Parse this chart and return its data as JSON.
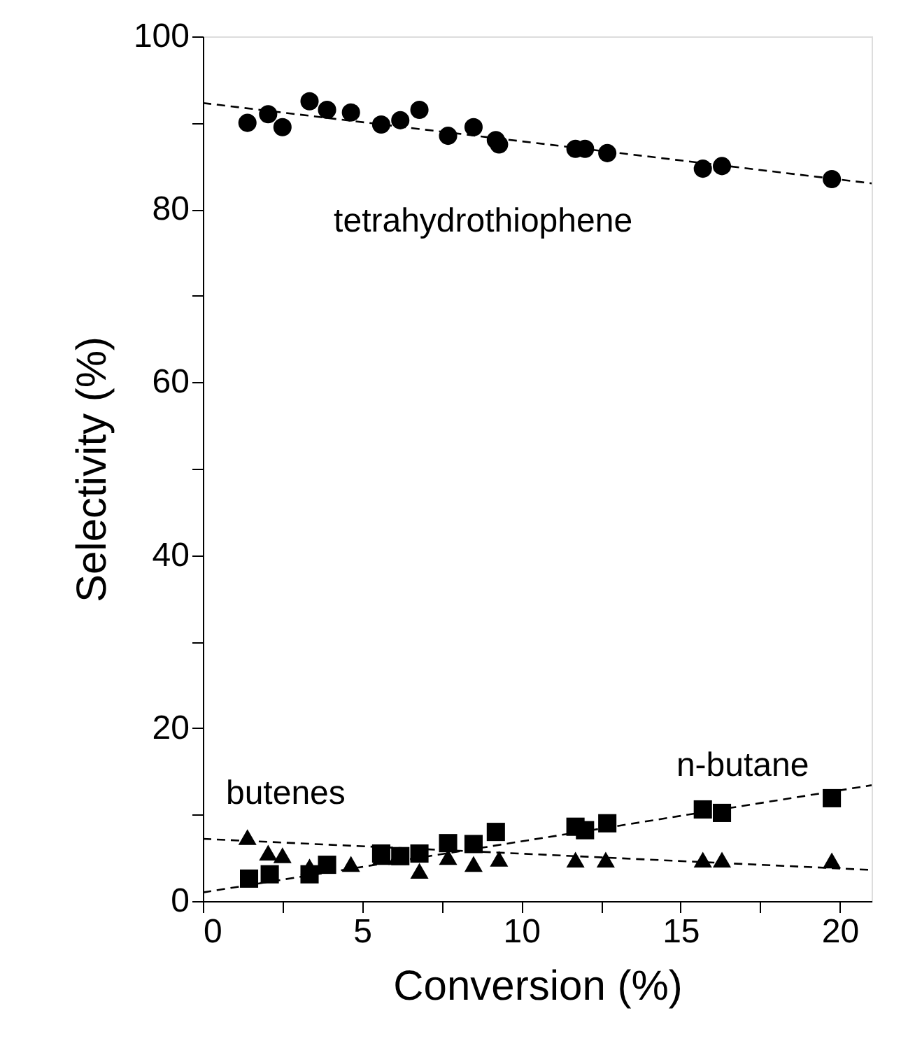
{
  "chart_data": {
    "type": "scatter",
    "xlabel": "Conversion (%)",
    "ylabel": "Selectivity (%)",
    "xlim": [
      0,
      21
    ],
    "ylim": [
      0,
      100
    ],
    "xticks": [
      0,
      {
        "value": 2.5,
        "label": null
      },
      5,
      {
        "value": 7.5,
        "label": null
      },
      10,
      {
        "value": 12.5,
        "label": null
      },
      15,
      {
        "value": 17.5,
        "label": null
      },
      20
    ],
    "yticks": [
      0,
      {
        "value": 10,
        "label": null
      },
      20,
      {
        "value": 30,
        "label": null
      },
      40,
      {
        "value": 50,
        "label": null
      },
      60,
      {
        "value": 70,
        "label": null
      },
      80,
      {
        "value": 90,
        "label": null
      },
      100
    ],
    "grid": false,
    "series": [
      {
        "name": "tetrahydrothiophene",
        "marker": "circle",
        "color": "#000000",
        "x": [
          1.4,
          2.05,
          2.5,
          3.35,
          3.9,
          4.65,
          5.6,
          6.2,
          6.8,
          7.7,
          8.5,
          9.2,
          9.3,
          11.7,
          12.0,
          12.7,
          15.7,
          16.3,
          19.75
        ],
        "values": [
          90,
          91,
          89.5,
          92.5,
          91.5,
          91.2,
          89.8,
          90.3,
          91.5,
          88.5,
          89.5,
          88,
          87.5,
          87,
          87,
          86.5,
          84.7,
          85,
          83.5
        ]
      },
      {
        "name": "n-butane",
        "marker": "square",
        "color": "#000000",
        "x": [
          1.45,
          2.1,
          3.35,
          3.9,
          5.6,
          6.2,
          6.8,
          7.7,
          8.5,
          9.2,
          11.7,
          12.0,
          12.7,
          15.7,
          16.3,
          19.75
        ],
        "values": [
          2.6,
          3.1,
          3.1,
          4.2,
          5.5,
          5.2,
          5.5,
          6.7,
          6.6,
          8.0,
          8.6,
          8.2,
          9.0,
          10.6,
          10.2,
          11.9
        ]
      },
      {
        "name": "butenes",
        "marker": "triangle",
        "color": "#000000",
        "x": [
          1.4,
          2.05,
          2.5,
          3.35,
          4.65,
          5.6,
          6.1,
          6.8,
          7.7,
          8.5,
          9.3,
          11.7,
          12.65,
          15.7,
          16.3,
          19.75
        ],
        "values": [
          7.4,
          5.6,
          5.3,
          4.0,
          4.3,
          5.1,
          5.1,
          3.5,
          5.1,
          4.3,
          4.9,
          4.8,
          4.8,
          4.8,
          4.8,
          4.7
        ]
      },
      {
        "type": "line",
        "line_style": "dashed",
        "marker": "none",
        "color": "#000000",
        "x": [
          0,
          21
        ],
        "values": [
          92.3,
          83
        ]
      },
      {
        "type": "line",
        "line_style": "dashed",
        "marker": "none",
        "color": "#000000",
        "x": [
          0,
          21
        ],
        "values": [
          1,
          13.4
        ]
      },
      {
        "type": "line",
        "line_style": "dashed",
        "marker": "none",
        "color": "#000000",
        "x": [
          0,
          21
        ],
        "values": [
          7.2,
          3.6
        ]
      }
    ]
  }
}
